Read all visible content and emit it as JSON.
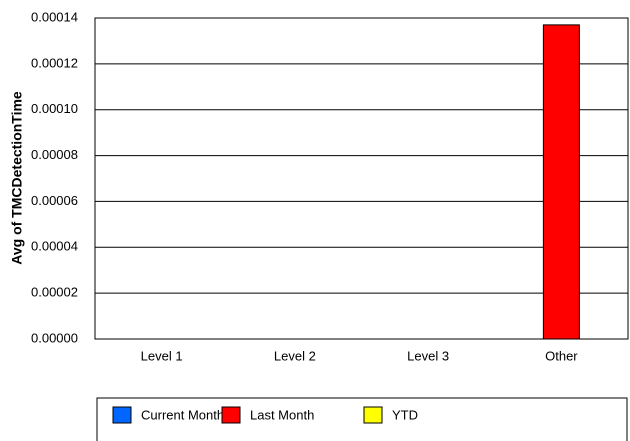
{
  "chart_data": {
    "type": "bar",
    "y_label": "Avg of TMCDetectionTime",
    "categories": [
      "Level  1",
      "Level  2",
      "Level  3",
      "Other"
    ],
    "series": [
      {
        "name": "Current Month",
        "color": "#0066ff",
        "values": [
          0,
          0,
          0,
          0
        ]
      },
      {
        "name": "Last Month",
        "color": "#ff0000",
        "values": [
          0,
          0,
          0,
          0.000137
        ]
      },
      {
        "name": "YTD",
        "color": "#ffff00",
        "values": [
          0,
          0,
          0,
          0
        ]
      }
    ],
    "ylim": [
      0,
      0.00014
    ],
    "yticks": [
      {
        "value": 0,
        "label": "0.00000"
      },
      {
        "value": 2e-05,
        "label": "0.00002"
      },
      {
        "value": 4e-05,
        "label": "0.00004"
      },
      {
        "value": 6e-05,
        "label": "0.00006"
      },
      {
        "value": 8e-05,
        "label": "0.00008"
      },
      {
        "value": 0.0001,
        "label": "0.00010"
      },
      {
        "value": 0.00012,
        "label": "0.00012"
      },
      {
        "value": 0.00014,
        "label": "0.00014"
      }
    ],
    "grid": true
  }
}
